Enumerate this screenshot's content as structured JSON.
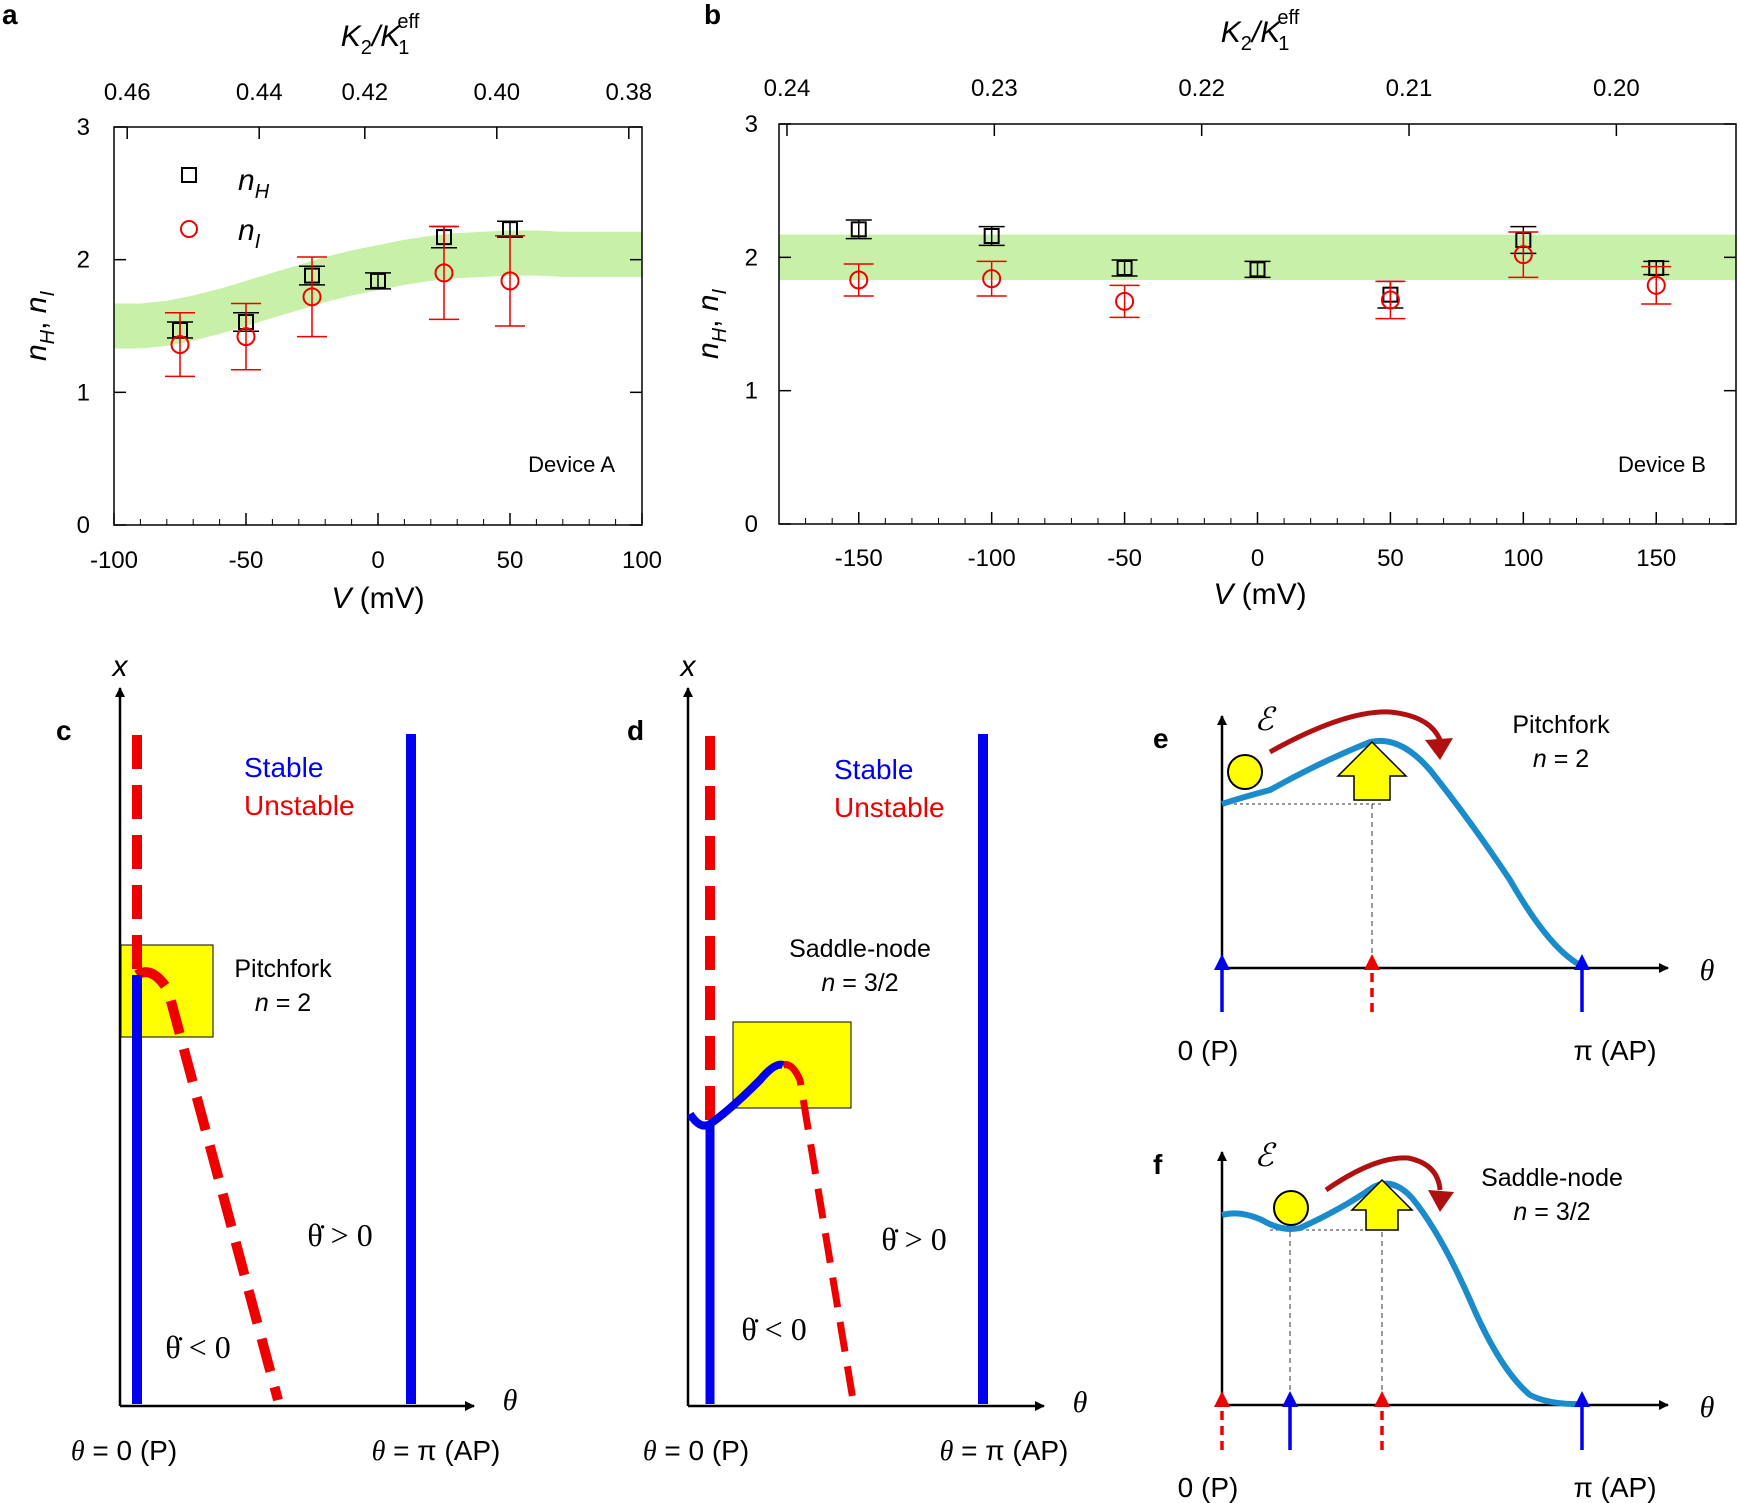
{
  "panel_labels": [
    "a",
    "b",
    "c",
    "d",
    "e",
    "f"
  ],
  "colors": {
    "stable": "#0000ee",
    "unstable": "#ee0000",
    "band": "#c9f0a8",
    "curve": "#1a8ccc",
    "highlight": "#ffff00",
    "bend_arrow": "#b01010",
    "nH": "#000000",
    "nI": "#ee0000"
  },
  "chart_data": [
    {
      "id": "a",
      "type": "scatter",
      "title": "",
      "top_axis": {
        "label_main": "K",
        "label_sub1": "2",
        "label_slash": "/K",
        "label_sub2": "1",
        "label_sup": "eff",
        "ticks": [
          -95,
          -45,
          -5,
          45,
          95
        ],
        "tick_labels": [
          "0.46",
          "0.44",
          "0.42",
          "0.40",
          "0.38"
        ]
      },
      "xlabel_italic": "V",
      "xlabel_unit": " (mV)",
      "ylabel": "nH, nI",
      "xlim": [
        -100,
        100
      ],
      "ylim": [
        0,
        3
      ],
      "xticks": [
        -100,
        -50,
        0,
        50,
        100
      ],
      "xtick_labels": [
        "-100",
        "-50",
        "0",
        "50",
        "100"
      ],
      "yticks": [
        0,
        1,
        2,
        3
      ],
      "ytick_labels": [
        "0",
        "1",
        "2",
        "3"
      ],
      "legend": {
        "position": "top-left",
        "entries": [
          {
            "symbol": "square",
            "label": "n",
            "sub": "H"
          },
          {
            "symbol": "circle",
            "label": "n",
            "sub": "I"
          }
        ]
      },
      "annotation": "Device A",
      "band": {
        "x": [
          -100,
          -90,
          -80,
          -70,
          -60,
          -50,
          -40,
          -30,
          -20,
          -10,
          0,
          10,
          20,
          30,
          40,
          50,
          60,
          70,
          80,
          90,
          100
        ],
        "center": [
          1.5,
          1.5,
          1.52,
          1.56,
          1.61,
          1.67,
          1.73,
          1.79,
          1.85,
          1.9,
          1.94,
          1.98,
          2.01,
          2.03,
          2.04,
          2.05,
          2.05,
          2.04,
          2.04,
          2.04,
          2.04
        ],
        "half_width": 0.17
      },
      "series": [
        {
          "name": "nH",
          "marker": "square",
          "x": [
            -75,
            -50,
            -25,
            0,
            25,
            50
          ],
          "y": [
            1.47,
            1.53,
            1.88,
            1.84,
            2.17,
            2.23
          ],
          "err": [
            0.06,
            0.07,
            0.07,
            0.06,
            0.08,
            0.06
          ]
        },
        {
          "name": "nI",
          "marker": "circle",
          "x": [
            -75,
            -50,
            -25,
            0,
            25,
            50
          ],
          "y": [
            1.36,
            1.42,
            1.72,
            null,
            1.9,
            1.84
          ],
          "err": [
            0.24,
            0.25,
            0.3,
            null,
            0.35,
            0.34
          ]
        }
      ]
    },
    {
      "id": "b",
      "type": "scatter",
      "title": "",
      "top_axis": {
        "label_main": "K",
        "label_sub1": "2",
        "label_slash": "/K",
        "label_sub2": "1",
        "label_sup": "eff",
        "ticks": [
          -177,
          -99,
          -21,
          57,
          135
        ],
        "tick_labels": [
          "0.24",
          "0.23",
          "0.22",
          "0.21",
          "0.20"
        ]
      },
      "xlabel_italic": "V",
      "xlabel_unit": " (mV)",
      "ylabel": "nH, nI",
      "xlim": [
        -180,
        180
      ],
      "ylim": [
        0,
        3
      ],
      "xticks": [
        -150,
        -100,
        -50,
        0,
        50,
        100,
        150
      ],
      "xtick_labels": [
        "-150",
        "-100",
        "-50",
        "0",
        "50",
        "100",
        "150"
      ],
      "yticks": [
        0,
        1,
        2,
        3
      ],
      "ytick_labels": [
        "0",
        "1",
        "2",
        "3"
      ],
      "annotation": "Device B",
      "band": {
        "x": [
          -180,
          180
        ],
        "center": [
          2.0,
          2.0
        ],
        "half_width": 0.17
      },
      "series": [
        {
          "name": "nH",
          "marker": "square",
          "x": [
            -150,
            -100,
            -50,
            0,
            50,
            100,
            150
          ],
          "y": [
            2.21,
            2.16,
            1.92,
            1.91,
            1.72,
            2.13,
            1.92
          ],
          "err": [
            0.07,
            0.07,
            0.06,
            0.06,
            0.1,
            0.1,
            0.05
          ]
        },
        {
          "name": "nI",
          "marker": "circle",
          "x": [
            -150,
            -100,
            -50,
            0,
            50,
            100,
            150
          ],
          "y": [
            1.83,
            1.84,
            1.67,
            null,
            1.68,
            2.02,
            1.79
          ],
          "err": [
            0.12,
            0.13,
            0.12,
            null,
            0.14,
            0.17,
            0.14
          ]
        }
      ]
    }
  ],
  "panel_c": {
    "axis_y": "x",
    "axis_x": "θ",
    "legend_stable": "Stable",
    "legend_unstable": "Unstable",
    "bif_name": "Pitchfork",
    "bif_n": "n",
    "bif_n_value": " = 2",
    "rate_pos": "θ̇ > 0",
    "rate_neg": "θ̇ < 0",
    "x_left_label": "θ",
    "x_left_value": " = 0 (P)",
    "x_right_label": "θ",
    "x_right_value": " = π (AP)"
  },
  "panel_d": {
    "axis_y": "x",
    "axis_x": "θ",
    "legend_stable": "Stable",
    "legend_unstable": "Unstable",
    "bif_name": "Saddle-node",
    "bif_n": "n",
    "bif_n_value": " = 3/2",
    "rate_pos": "θ̇ > 0",
    "rate_neg": "θ̇ < 0",
    "x_left_label": "θ",
    "x_left_value": " = 0 (P)",
    "x_right_label": "θ",
    "x_right_value": " = π (AP)"
  },
  "panel_e": {
    "axis_y": "ℰ",
    "axis_x": "θ",
    "bif_name": "Pitchfork",
    "bif_n": "n",
    "bif_n_value": " = 2",
    "left_label": "0 (P)",
    "right_label": "π (AP)"
  },
  "panel_f": {
    "axis_y": "ℰ",
    "axis_x": "θ",
    "bif_name": "Saddle-node",
    "bif_n": "n",
    "bif_n_value": " = 3/2",
    "left_label": "0 (P)",
    "right_label": "π (AP)"
  }
}
